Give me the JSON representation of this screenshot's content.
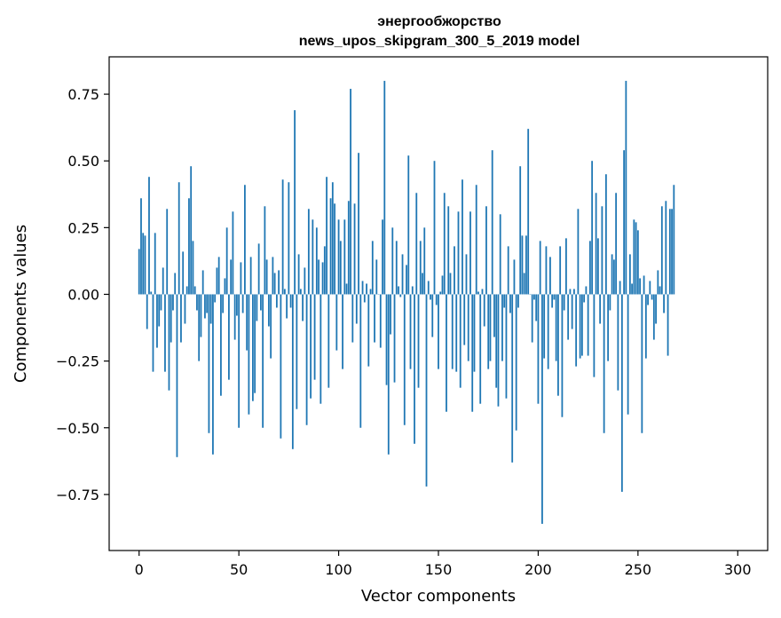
{
  "chart_data": {
    "type": "bar",
    "title_line1": "энергообжорство",
    "title_line2": "news_upos_skipgram_300_5_2019 model",
    "xlabel": "Vector components",
    "ylabel": "Components values",
    "xlim": [
      -15,
      315
    ],
    "ylim": [
      -0.96,
      0.89
    ],
    "xticks": [
      0,
      50,
      100,
      150,
      200,
      250,
      300
    ],
    "yticks": [
      0.75,
      0.5,
      0.25,
      0.0,
      -0.25,
      -0.5,
      -0.75
    ],
    "ytick_labels": [
      "0.75",
      "0.50",
      "0.25",
      "0.00",
      "−0.25",
      "−0.50",
      "−0.75"
    ],
    "bar_color": "#1f77b4",
    "grid": false,
    "values": [
      0.17,
      0.36,
      0.23,
      0.22,
      -0.13,
      0.44,
      0.01,
      -0.29,
      0.23,
      -0.2,
      -0.12,
      -0.06,
      0.1,
      -0.29,
      0.32,
      -0.36,
      -0.18,
      -0.06,
      0.08,
      -0.61,
      0.42,
      -0.18,
      0.16,
      -0.11,
      0.03,
      0.36,
      0.48,
      0.2,
      0.03,
      -0.06,
      -0.25,
      -0.16,
      0.09,
      -0.09,
      -0.07,
      -0.52,
      -0.11,
      -0.6,
      -0.03,
      0.1,
      0.14,
      -0.38,
      -0.07,
      0.06,
      0.25,
      -0.32,
      0.13,
      0.31,
      -0.17,
      -0.08,
      -0.5,
      0.12,
      -0.07,
      0.41,
      -0.21,
      -0.45,
      0.14,
      -0.4,
      -0.37,
      -0.1,
      0.19,
      -0.06,
      -0.5,
      0.33,
      0.13,
      -0.12,
      -0.24,
      0.14,
      0.08,
      -0.05,
      0.09,
      -0.54,
      0.43,
      0.02,
      -0.09,
      0.42,
      -0.05,
      -0.58,
      0.69,
      -0.43,
      0.15,
      0.02,
      -0.1,
      0.1,
      -0.49,
      0.32,
      -0.39,
      0.28,
      -0.32,
      0.25,
      0.13,
      -0.41,
      0.12,
      0.18,
      0.44,
      -0.35,
      0.36,
      0.42,
      0.34,
      -0.21,
      0.28,
      0.2,
      -0.28,
      0.28,
      0.04,
      0.35,
      0.77,
      -0.18,
      0.34,
      -0.11,
      0.53,
      -0.5,
      0.05,
      -0.03,
      0.04,
      -0.27,
      0.02,
      0.2,
      -0.18,
      0.13,
      0.0,
      -0.2,
      0.28,
      0.8,
      -0.34,
      -0.6,
      -0.15,
      0.25,
      -0.33,
      0.2,
      0.03,
      -0.01,
      0.15,
      -0.49,
      0.11,
      0.52,
      -0.28,
      0.03,
      -0.56,
      0.38,
      -0.35,
      0.2,
      0.08,
      0.25,
      -0.72,
      0.05,
      -0.02,
      -0.16,
      0.5,
      -0.04,
      -0.28,
      0.01,
      0.07,
      0.38,
      -0.44,
      0.33,
      0.08,
      -0.28,
      0.18,
      -0.29,
      0.31,
      -0.35,
      0.43,
      -0.19,
      0.15,
      -0.25,
      0.31,
      -0.44,
      -0.29,
      0.41,
      0.01,
      -0.41,
      0.02,
      -0.12,
      0.33,
      -0.28,
      -0.25,
      0.54,
      -0.16,
      -0.35,
      -0.42,
      0.3,
      -0.25,
      -0.05,
      -0.39,
      0.18,
      -0.07,
      -0.63,
      0.13,
      -0.51,
      -0.05,
      0.48,
      0.22,
      0.08,
      0.22,
      0.62,
      0.0,
      -0.18,
      -0.02,
      -0.1,
      -0.41,
      0.2,
      -0.86,
      -0.24,
      0.18,
      -0.28,
      0.14,
      -0.05,
      -0.02,
      -0.25,
      -0.38,
      0.18,
      -0.46,
      -0.06,
      0.21,
      -0.17,
      0.02,
      -0.13,
      0.02,
      -0.27,
      0.32,
      -0.24,
      -0.23,
      -0.03,
      0.03,
      -0.23,
      0.2,
      0.5,
      -0.31,
      0.38,
      0.21,
      -0.11,
      0.33,
      -0.52,
      0.45,
      -0.25,
      -0.06,
      0.15,
      0.13,
      0.38,
      -0.36,
      0.05,
      -0.74,
      0.54,
      0.8,
      -0.45,
      0.15,
      0.04,
      0.28,
      0.27,
      0.24,
      0.06,
      -0.52,
      0.07,
      -0.24,
      -0.04,
      0.05,
      -0.02,
      -0.17,
      -0.11,
      0.09,
      0.03,
      0.33,
      -0.07,
      0.35,
      -0.23,
      0.32,
      0.32,
      0.41
    ]
  }
}
